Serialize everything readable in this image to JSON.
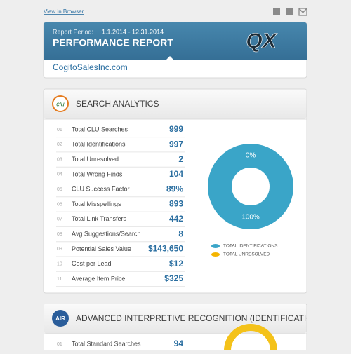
{
  "header": {
    "view_in_browser": "View in Browser",
    "report_period_label": "Report Period:",
    "report_period": "1.1.2014 - 12.31.2014",
    "title": "PERFORMANCE REPORT",
    "logo": "QX",
    "site": "CogitoSalesInc.com"
  },
  "sections": [
    {
      "title": "SEARCH ANALYTICS",
      "logo": "clu",
      "rows": [
        [
          "01",
          "Total CLU Searches",
          "999"
        ],
        [
          "02",
          "Total Identifications",
          "997"
        ],
        [
          "03",
          "Total Unresolved",
          "2"
        ],
        [
          "04",
          "Total Wrong Finds",
          "104"
        ],
        [
          "05",
          "CLU Success Factor",
          "89%"
        ],
        [
          "06",
          "Total Misspellings",
          "893"
        ],
        [
          "07",
          "Total Link Transfers",
          "442"
        ],
        [
          "08",
          "Avg Suggestions/Search",
          "8"
        ],
        [
          "09",
          "Potential Sales Value",
          "$143,650"
        ],
        [
          "10",
          "Cost per Lead",
          "$12"
        ],
        [
          "11",
          "Average Item Price",
          "$325"
        ]
      ],
      "chart_data": {
        "type": "pie",
        "categories": [
          "TOTAL IDENTIFICATIONS",
          "TOTAL UNRESOLVED"
        ],
        "values": [
          100,
          0
        ],
        "value_labels": [
          "100%",
          "0%"
        ],
        "colors": [
          "#3aa5c8",
          "#f4b400"
        ]
      }
    },
    {
      "title": "ADVANCED INTERPRETIVE RECOGNITION (IDENTIFICATIONS)",
      "logo": "AIR",
      "rows": [
        [
          "01",
          "Total Standard Searches",
          "94"
        ]
      ]
    }
  ]
}
